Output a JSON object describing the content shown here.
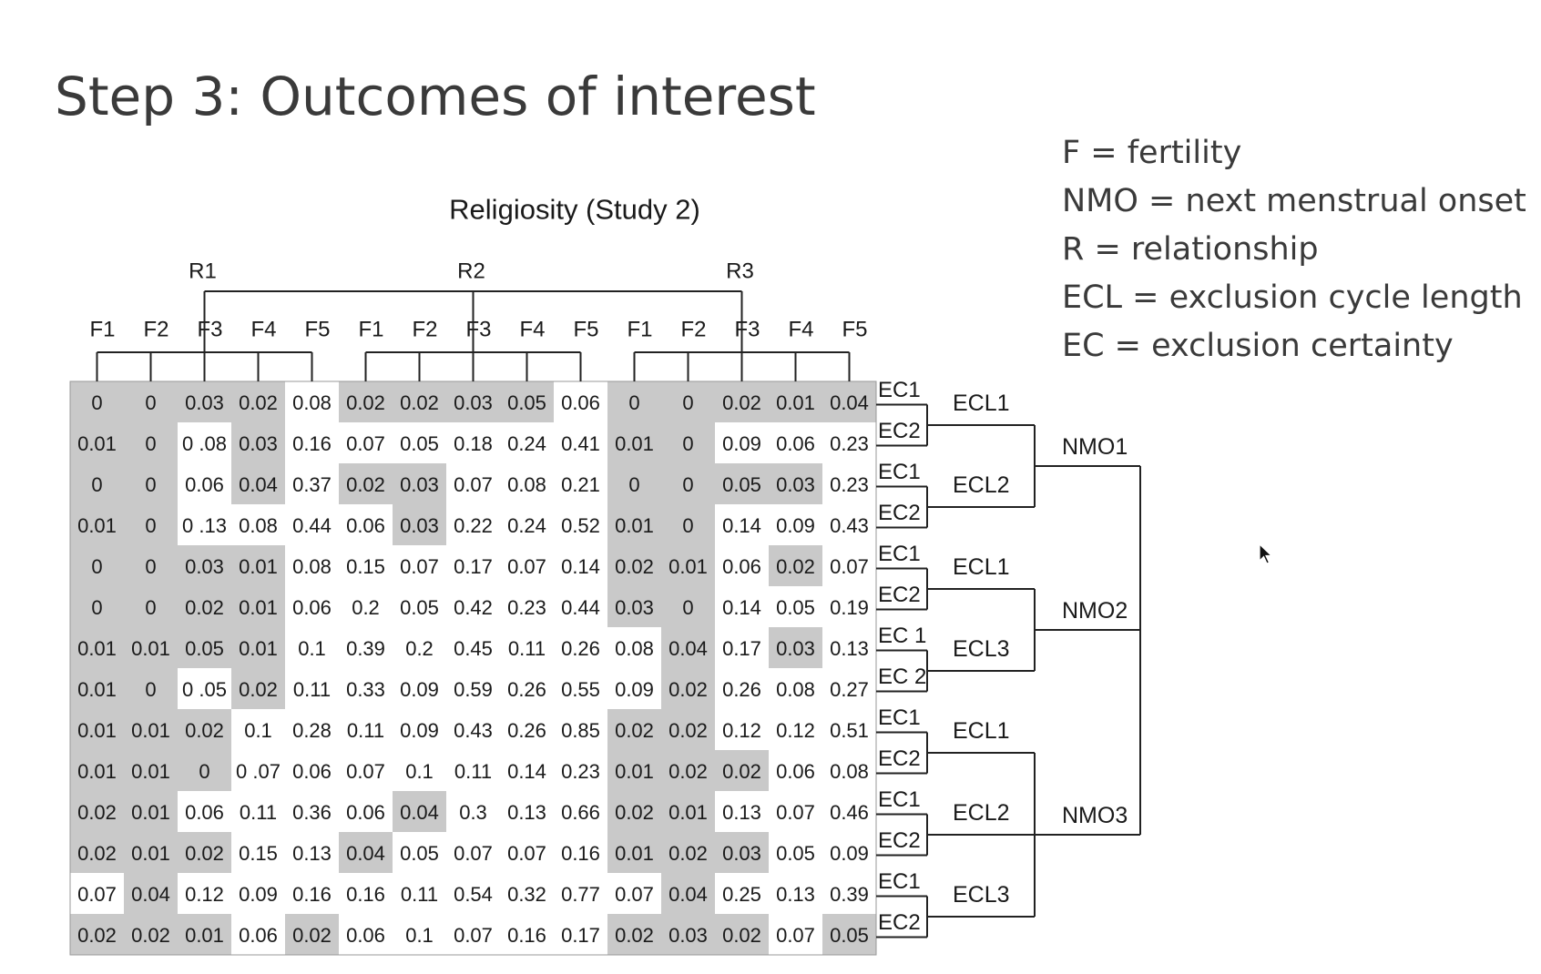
{
  "slide": {
    "title": "Step 3: Outcomes of interest"
  },
  "legend": [
    "F = fertility",
    "NMO = next menstrual onset",
    "R = relationship",
    "ECL = exclusion cycle length",
    "EC = exclusion certainty"
  ],
  "figure": {
    "title": "Religiosity (Study 2)",
    "r_labels": [
      "R1",
      "R2",
      "R3"
    ],
    "f_labels": [
      "F1",
      "F2",
      "F3",
      "F4",
      "F5"
    ],
    "ec_labels": [
      "EC1",
      "EC2",
      "EC1",
      "EC2",
      "EC1",
      "EC2",
      "EC 1",
      "EC 2",
      "EC1",
      "EC2",
      "EC1",
      "EC2",
      "EC1",
      "EC2"
    ],
    "ecl_labels": [
      "ECL1",
      "ECL2",
      "ECL1",
      "ECL3",
      "ECL1",
      "ECL2",
      "ECL3"
    ],
    "nmo_labels": [
      "NMO1",
      "NMO2",
      "NMO3"
    ],
    "cells": [
      [
        "0",
        "0",
        "0.03",
        "0.02",
        "0.08",
        "0.02",
        "0.02",
        "0.03",
        "0.05",
        "0.06",
        "0",
        "0",
        "0.02",
        "0.01",
        "0.04"
      ],
      [
        "0.01",
        "0",
        "0 .08",
        "0.03",
        "0.16",
        "0.07",
        "0.05",
        "0.18",
        "0.24",
        "0.41",
        "0.01",
        "0",
        "0.09",
        "0.06",
        "0.23"
      ],
      [
        "0",
        "0",
        "0.06",
        "0.04",
        "0.37",
        "0.02",
        "0.03",
        "0.07",
        "0.08",
        "0.21",
        "0",
        "0",
        "0.05",
        "0.03",
        "0.23"
      ],
      [
        "0.01",
        "0",
        "0 .13",
        "0.08",
        "0.44",
        "0.06",
        "0.03",
        "0.22",
        "0.24",
        "0.52",
        "0.01",
        "0",
        "0.14",
        "0.09",
        "0.43"
      ],
      [
        "0",
        "0",
        "0.03",
        "0.01",
        "0.08",
        "0.15",
        "0.07",
        "0.17",
        "0.07",
        "0.14",
        "0.02",
        "0.01",
        "0.06",
        "0.02",
        "0.07"
      ],
      [
        "0",
        "0",
        "0.02",
        "0.01",
        "0.06",
        "0.2",
        "0.05",
        "0.42",
        "0.23",
        "0.44",
        "0.03",
        "0",
        "0.14",
        "0.05",
        "0.19"
      ],
      [
        "0.01",
        "0.01",
        "0.05",
        "0.01",
        "0.1",
        "0.39",
        "0.2",
        "0.45",
        "0.11",
        "0.26",
        "0.08",
        "0.04",
        "0.17",
        "0.03",
        "0.13"
      ],
      [
        "0.01",
        "0",
        "0 .05",
        "0.02",
        "0.11",
        "0.33",
        "0.09",
        "0.59",
        "0.26",
        "0.55",
        "0.09",
        "0.02",
        "0.26",
        "0.08",
        "0.27"
      ],
      [
        "0.01",
        "0.01",
        "0.02",
        "0.1",
        "0.28",
        "0.11",
        "0.09",
        "0.43",
        "0.26",
        "0.85",
        "0.02",
        "0.02",
        "0.12",
        "0.12",
        "0.51"
      ],
      [
        "0.01",
        "0.01",
        "0",
        "0 .07",
        "0.06",
        "0.07",
        "0.1",
        "0.11",
        "0.14",
        "0.23",
        "0.01",
        "0.02",
        "0.02",
        "0.06",
        "0.08"
      ],
      [
        "0.02",
        "0.01",
        "0.06",
        "0.11",
        "0.36",
        "0.06",
        "0.04",
        "0.3",
        "0.13",
        "0.66",
        "0.02",
        "0.01",
        "0.13",
        "0.07",
        "0.46"
      ],
      [
        "0.02",
        "0.01",
        "0.02",
        "0.15",
        "0.13",
        "0.04",
        "0.05",
        "0.07",
        "0.07",
        "0.16",
        "0.01",
        "0.02",
        "0.03",
        "0.05",
        "0.09"
      ],
      [
        "0.07",
        "0.04",
        "0.12",
        "0.09",
        "0.16",
        "0.16",
        "0.11",
        "0.54",
        "0.32",
        "0.77",
        "0.07",
        "0.04",
        "0.25",
        "0.13",
        "0.39"
      ],
      [
        "0.02",
        "0.02",
        "0.01",
        "0.06",
        "0.02",
        "0.06",
        "0.1",
        "0.07",
        "0.16",
        "0.17",
        "0.02",
        "0.03",
        "0.02",
        "0.07",
        "0.05"
      ]
    ],
    "shaded": [
      [
        1,
        1,
        1,
        1,
        0,
        1,
        1,
        1,
        1,
        0,
        1,
        1,
        1,
        1,
        1
      ],
      [
        1,
        1,
        0,
        1,
        0,
        0,
        0,
        0,
        0,
        0,
        1,
        1,
        0,
        0,
        0
      ],
      [
        1,
        1,
        0,
        1,
        0,
        1,
        1,
        0,
        0,
        0,
        1,
        1,
        1,
        1,
        0
      ],
      [
        1,
        1,
        0,
        0,
        0,
        0,
        1,
        0,
        0,
        0,
        1,
        1,
        0,
        0,
        0
      ],
      [
        1,
        1,
        1,
        1,
        0,
        0,
        0,
        0,
        0,
        0,
        1,
        1,
        0,
        1,
        0
      ],
      [
        1,
        1,
        1,
        1,
        0,
        0,
        0,
        0,
        0,
        0,
        1,
        1,
        0,
        0,
        0
      ],
      [
        1,
        1,
        1,
        1,
        0,
        0,
        0,
        0,
        0,
        0,
        0,
        1,
        0,
        1,
        0
      ],
      [
        1,
        1,
        0,
        1,
        0,
        0,
        0,
        0,
        0,
        0,
        0,
        1,
        0,
        0,
        0
      ],
      [
        1,
        1,
        1,
        0,
        0,
        0,
        0,
        0,
        0,
        0,
        1,
        1,
        0,
        0,
        0
      ],
      [
        1,
        1,
        1,
        0,
        0,
        0,
        0,
        0,
        0,
        0,
        1,
        1,
        1,
        0,
        0
      ],
      [
        1,
        1,
        0,
        0,
        0,
        0,
        1,
        0,
        0,
        0,
        1,
        1,
        0,
        0,
        0
      ],
      [
        1,
        1,
        1,
        0,
        0,
        1,
        0,
        0,
        0,
        0,
        1,
        1,
        1,
        0,
        0
      ],
      [
        0,
        1,
        0,
        0,
        0,
        0,
        0,
        0,
        0,
        0,
        0,
        1,
        0,
        0,
        0
      ],
      [
        1,
        1,
        1,
        0,
        1,
        0,
        0,
        0,
        0,
        0,
        1,
        1,
        1,
        0,
        1
      ]
    ],
    "colors": {
      "shade": "#c9c9c9",
      "white": "#ffffff",
      "lines": "#222222",
      "text": "#1a1a1a"
    }
  }
}
